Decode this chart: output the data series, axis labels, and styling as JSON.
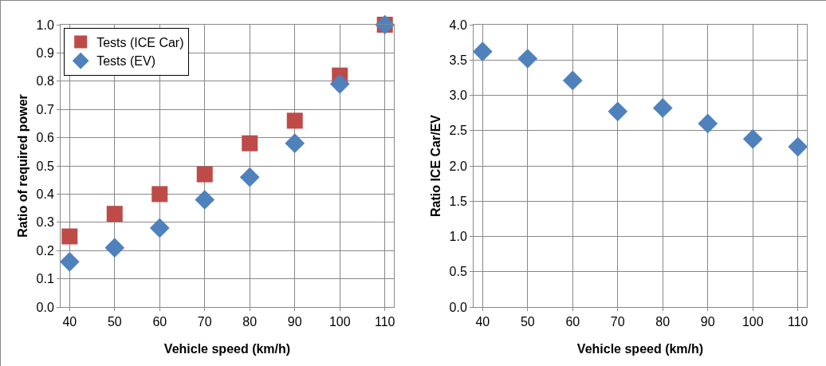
{
  "chart_data": [
    {
      "type": "scatter",
      "xlabel": "Vehicle speed (km/h)",
      "ylabel": "Ratio of required power",
      "x": [
        40,
        50,
        60,
        70,
        80,
        90,
        100,
        110
      ],
      "series": [
        {
          "name": "Tests (ICE Car)",
          "color": "#be4b48",
          "marker": "square",
          "values": [
            0.25,
            0.33,
            0.4,
            0.47,
            0.58,
            0.66,
            0.82,
            1.0
          ]
        },
        {
          "name": "Tests (EV)",
          "color": "#4f81bd",
          "marker": "diamond",
          "values": [
            0.16,
            0.21,
            0.28,
            0.38,
            0.46,
            0.58,
            0.79,
            1.0
          ]
        }
      ],
      "xlim": [
        38,
        112
      ],
      "xticks": [
        40,
        50,
        60,
        70,
        80,
        90,
        100,
        110
      ],
      "ylim": [
        0,
        1.0
      ],
      "yticks": [
        {
          "value": 0,
          "label": "0.0"
        },
        0.1,
        0.2,
        0.3,
        0.4,
        0.5,
        0.6,
        0.7,
        0.8,
        0.9,
        {
          "value": 1,
          "label": "1.0"
        }
      ],
      "grid": true,
      "legend": "top left"
    },
    {
      "type": "scatter",
      "xlabel": "Vehicle speed (km/h)",
      "ylabel": "Ratio ICE Car/EV",
      "x": [
        40,
        50,
        60,
        70,
        80,
        90,
        100,
        110
      ],
      "series": [
        {
          "color": "#4f81bd",
          "marker": "diamond",
          "values": [
            3.62,
            3.52,
            3.21,
            2.77,
            2.82,
            2.6,
            2.38,
            2.27
          ]
        }
      ],
      "xlim": [
        38,
        112
      ],
      "xticks": [
        40,
        50,
        60,
        70,
        80,
        90,
        100,
        110
      ],
      "ylim": [
        0,
        4.0
      ],
      "yticks": [
        {
          "value": 0,
          "label": "0.0"
        },
        0.5,
        {
          "value": 1,
          "label": "1.0"
        },
        1.5,
        {
          "value": 2,
          "label": "2.0"
        },
        2.5,
        {
          "value": 3,
          "label": "3.0"
        },
        3.5,
        {
          "value": 4,
          "label": "4.0"
        }
      ],
      "grid": true
    }
  ]
}
